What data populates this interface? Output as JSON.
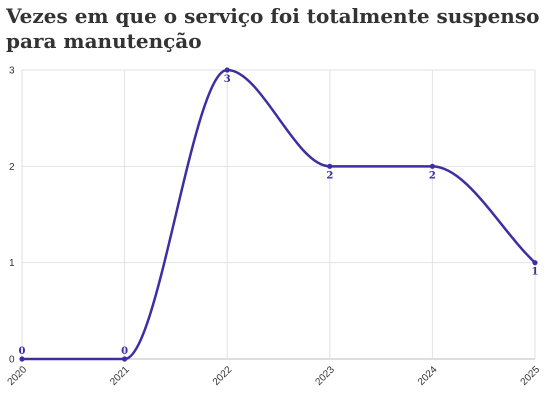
{
  "title": "Vezes em que o serviço foi totalmente suspenso para manutenção",
  "colors": {
    "line": "#3b2fa3",
    "grid": "#e2e2e2",
    "axis": "#333333"
  },
  "chart_data": {
    "type": "line",
    "x": [
      "2020",
      "2021",
      "2022",
      "2023",
      "2024",
      "2025"
    ],
    "series": [
      {
        "values": [
          0,
          0,
          3,
          2,
          2,
          1
        ]
      }
    ],
    "ylim": [
      0,
      3
    ],
    "yticks": [
      "0",
      "1",
      "2",
      "3"
    ],
    "grid": true,
    "data_labels": [
      "0",
      "0",
      "3",
      "2",
      "2",
      "1"
    ]
  }
}
